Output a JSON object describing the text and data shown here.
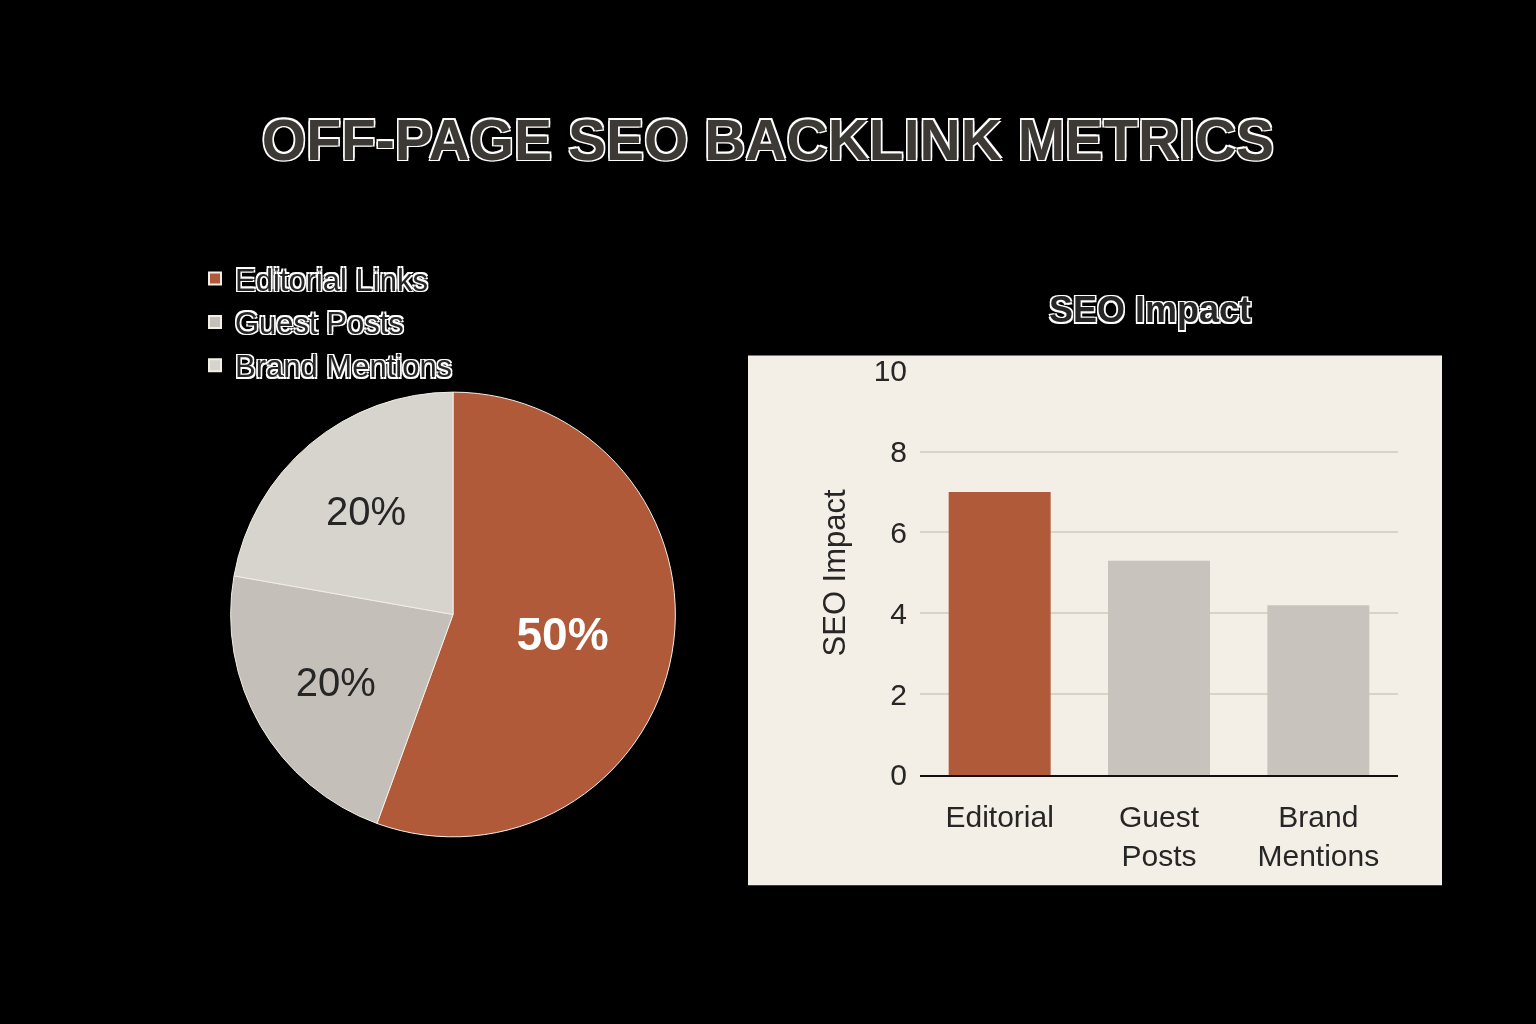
{
  "chart_data": [
    {
      "type": "pie",
      "title": "OFF-PAGE SEO BACKLINK METRICS",
      "categories": [
        "Editorial Links",
        "Guest Posts",
        "Brand Mentions"
      ],
      "values": [
        50,
        20,
        20
      ],
      "colors": [
        "#b05a3a",
        "#c4bfb8",
        "#d7d3cd"
      ],
      "value_labels": [
        "50%",
        "20%",
        "20%"
      ],
      "legend": "top left"
    },
    {
      "type": "bar",
      "title": "SEO Impact",
      "ylabel": "SEO Impact",
      "categories": [
        "Editorial",
        "Guest Posts",
        "Brand Mentions"
      ],
      "values": [
        7.0,
        5.3,
        4.2
      ],
      "colors": [
        "#b05a3a",
        "#c8c3bc",
        "#c8c3bc"
      ],
      "ylim": [
        0,
        10
      ],
      "yticks": [
        0,
        2,
        4,
        6,
        8,
        10
      ],
      "grid": "y"
    }
  ]
}
